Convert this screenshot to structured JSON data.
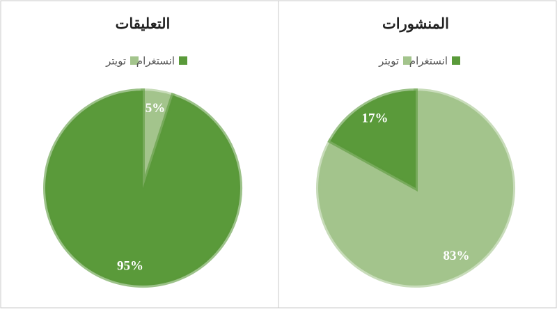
{
  "chart_data": [
    {
      "type": "pie",
      "title": "التعليقات",
      "categories": [
        "تويتر",
        "انستغرام"
      ],
      "values": [
        5,
        95
      ],
      "value_labels": [
        "5%",
        "95%"
      ],
      "colors": [
        "#a3c48c",
        "#5a9a3a"
      ]
    },
    {
      "type": "pie",
      "title": "المنشورات",
      "categories": [
        "تويتر",
        "انستغرام"
      ],
      "values": [
        83,
        17
      ],
      "value_labels": [
        "83%",
        "17%"
      ],
      "colors": [
        "#a3c48c",
        "#5a9a3a"
      ]
    }
  ]
}
